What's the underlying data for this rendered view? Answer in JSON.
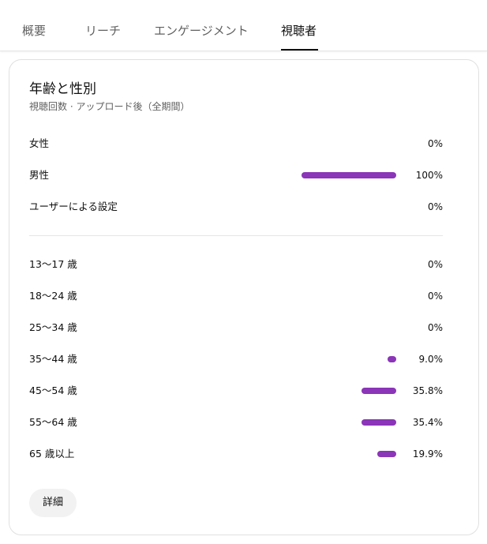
{
  "tabs": [
    {
      "label": "概要",
      "active": false
    },
    {
      "label": "リーチ",
      "active": false
    },
    {
      "label": "エンゲージメント",
      "active": false
    },
    {
      "label": "視聴者",
      "active": true
    }
  ],
  "card": {
    "title": "年齢と性別",
    "subtitle": "視聴回数 · アップロード後（全期間）",
    "bar_color": "#8b35b8",
    "gender": [
      {
        "label": "女性",
        "percent_text": "0%",
        "value": 0
      },
      {
        "label": "男性",
        "percent_text": "100%",
        "value": 100
      },
      {
        "label": "ユーザーによる設定",
        "percent_text": "0%",
        "value": 0
      }
    ],
    "age": [
      {
        "label": "13〜17 歳",
        "percent_text": "0%",
        "value": 0
      },
      {
        "label": "18〜24 歳",
        "percent_text": "0%",
        "value": 0
      },
      {
        "label": "25〜34 歳",
        "percent_text": "0%",
        "value": 0
      },
      {
        "label": "35〜44 歳",
        "percent_text": "9.0%",
        "value": 9.0
      },
      {
        "label": "45〜54 歳",
        "percent_text": "35.8%",
        "value": 35.8
      },
      {
        "label": "55〜64 歳",
        "percent_text": "35.4%",
        "value": 35.4
      },
      {
        "label": "65 歳以上",
        "percent_text": "19.9%",
        "value": 19.9
      }
    ],
    "details_label": "詳細"
  }
}
